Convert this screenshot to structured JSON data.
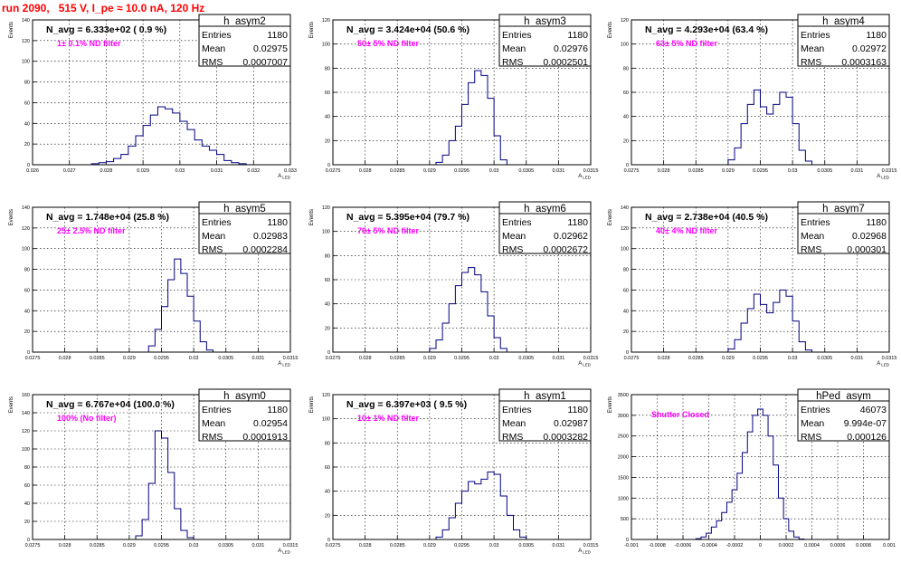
{
  "run_title": "run 2090,   515 V, I_pe ≈ 10.0 nA, 120 Hz",
  "chart_data": [
    {
      "type": "histogram",
      "name": "h_asym2",
      "n_avg": "N_avg = 6.333e+02 ( 0.9 %)",
      "filter": "1± 0.1% ND filter",
      "stats": {
        "Entries": "1180",
        "Mean": "0.02975",
        "RMS": "0.0007007"
      },
      "xlim": [
        0.026,
        0.033
      ],
      "xticks": [
        0.026,
        0.027,
        0.028,
        0.029,
        0.03,
        0.031,
        0.032,
        0.033
      ],
      "xticklabels": [
        "0.026",
        "0.027",
        "0.028",
        "0.029",
        "0.03",
        "0.031",
        "0.032",
        "0.033"
      ],
      "ylim": [
        0,
        140
      ],
      "yticks": [
        0,
        20,
        40,
        60,
        80,
        100,
        120,
        140
      ],
      "ylabel": "Events",
      "xlabel": "A_LED",
      "filter_color": "#ff00ff",
      "x": [
        0.0277,
        0.0279,
        0.0281,
        0.0283,
        0.0285,
        0.0287,
        0.0289,
        0.0291,
        0.0293,
        0.0295,
        0.0297,
        0.0299,
        0.0301,
        0.0303,
        0.0305,
        0.0307,
        0.0309,
        0.0311,
        0.0313,
        0.0315,
        0.0317
      ],
      "values": [
        1,
        2,
        3,
        6,
        10,
        18,
        28,
        38,
        48,
        56,
        54,
        50,
        42,
        34,
        24,
        18,
        14,
        10,
        4,
        2,
        1
      ]
    },
    {
      "type": "histogram",
      "name": "h_asym3",
      "n_avg": "N_avg = 3.424e+04 (50.6 %)",
      "filter": "50± 5% ND filter",
      "stats": {
        "Entries": "1180",
        "Mean": "0.02976",
        "RMS": "0.0002501"
      },
      "xlim": [
        0.0275,
        0.0315
      ],
      "xticks": [
        0.0275,
        0.028,
        0.0285,
        0.029,
        0.0295,
        0.03,
        0.0305,
        0.031,
        0.0315
      ],
      "xticklabels": [
        "0.0275",
        "0.028",
        "0.0285",
        "0.029",
        "0.0295",
        "0.03",
        "0.0305",
        "0.031",
        "0.0315"
      ],
      "ylim": [
        0,
        120
      ],
      "yticks": [
        0,
        20,
        40,
        60,
        80,
        100,
        120
      ],
      "ylabel": "Events",
      "xlabel": "A_LED",
      "filter_color": "#ff00ff",
      "x": [
        0.02915,
        0.02925,
        0.02935,
        0.02945,
        0.02955,
        0.02965,
        0.02975,
        0.02985,
        0.02995,
        0.03005,
        0.03015
      ],
      "values": [
        2,
        8,
        20,
        32,
        50,
        68,
        78,
        74,
        55,
        24,
        4
      ]
    },
    {
      "type": "histogram",
      "name": "h_asym4",
      "n_avg": "N_avg = 4.293e+04 (63.4 %)",
      "filter": "63± 5% ND filter",
      "stats": {
        "Entries": "1180",
        "Mean": "0.02972",
        "RMS": "0.0003163"
      },
      "xlim": [
        0.0275,
        0.0315
      ],
      "xticks": [
        0.0275,
        0.028,
        0.0285,
        0.029,
        0.0295,
        0.03,
        0.0305,
        0.031,
        0.0315
      ],
      "xticklabels": [
        "0.0275",
        "0.028",
        "0.0285",
        "0.029",
        "0.0295",
        "0.03",
        "0.0305",
        "0.031",
        "0.0315"
      ],
      "ylim": [
        0,
        120
      ],
      "yticks": [
        0,
        20,
        40,
        60,
        80,
        100,
        120
      ],
      "ylabel": "Events",
      "xlabel": "A_LED",
      "filter_color": "#ff00ff",
      "x": [
        0.02905,
        0.02915,
        0.02925,
        0.02935,
        0.02945,
        0.02955,
        0.02965,
        0.02975,
        0.02985,
        0.02995,
        0.03005,
        0.03015,
        0.03025
      ],
      "values": [
        4,
        14,
        34,
        50,
        62,
        48,
        42,
        50,
        60,
        56,
        34,
        12,
        3
      ]
    },
    {
      "type": "histogram",
      "name": "h_asym5",
      "n_avg": "N_avg = 1.748e+04 (25.8 %)",
      "filter": "25± 2.5% ND filter",
      "stats": {
        "Entries": "1180",
        "Mean": "0.02983",
        "RMS": "0.0002284"
      },
      "xlim": [
        0.0275,
        0.0315
      ],
      "xticks": [
        0.0275,
        0.028,
        0.0285,
        0.029,
        0.0295,
        0.03,
        0.0305,
        0.031,
        0.0315
      ],
      "xticklabels": [
        "0.0275",
        "0.028",
        "0.0285",
        "0.029",
        "0.0295",
        "0.03",
        "0.0305",
        "0.031",
        "0.0315"
      ],
      "ylim": [
        0,
        140
      ],
      "yticks": [
        0,
        20,
        40,
        60,
        80,
        100,
        120,
        140
      ],
      "ylabel": "Events",
      "xlabel": "A_LED",
      "filter_color": "#ff00ff",
      "x": [
        0.02935,
        0.02945,
        0.02955,
        0.02965,
        0.02975,
        0.02985,
        0.02995,
        0.03005,
        0.03015,
        0.03025
      ],
      "values": [
        6,
        22,
        44,
        70,
        90,
        76,
        54,
        30,
        10,
        2
      ]
    },
    {
      "type": "histogram",
      "name": "h_asym6",
      "n_avg": "N_avg = 5.395e+04 (79.7 %)",
      "filter": "79± 5% ND filter",
      "stats": {
        "Entries": "1180",
        "Mean": "0.02962",
        "RMS": "0.0002672"
      },
      "xlim": [
        0.0275,
        0.0315
      ],
      "xticks": [
        0.0275,
        0.028,
        0.0285,
        0.029,
        0.0295,
        0.03,
        0.0305,
        0.031,
        0.0315
      ],
      "xticklabels": [
        "0.0275",
        "0.028",
        "0.0285",
        "0.029",
        "0.0295",
        "0.03",
        "0.0305",
        "0.031",
        "0.0315"
      ],
      "ylim": [
        0,
        120
      ],
      "yticks": [
        0,
        20,
        40,
        60,
        80,
        100,
        120
      ],
      "ylabel": "Events",
      "xlabel": "A_LED",
      "filter_color": "#ff00ff",
      "x": [
        0.02905,
        0.02915,
        0.02925,
        0.02935,
        0.02945,
        0.02955,
        0.02965,
        0.02975,
        0.02985,
        0.02995,
        0.03005,
        0.03015
      ],
      "values": [
        3,
        10,
        24,
        40,
        55,
        66,
        70,
        64,
        50,
        30,
        12,
        3
      ]
    },
    {
      "type": "histogram",
      "name": "h_asym7",
      "n_avg": "N_avg = 2.738e+04 (40.5 %)",
      "filter": "40± 4% ND filter",
      "stats": {
        "Entries": "1180",
        "Mean": "0.02968",
        "RMS": "0.000301"
      },
      "xlim": [
        0.0275,
        0.0315
      ],
      "xticks": [
        0.0275,
        0.028,
        0.0285,
        0.029,
        0.0295,
        0.03,
        0.0305,
        0.031,
        0.0315
      ],
      "xticklabels": [
        "0.0275",
        "0.028",
        "0.0285",
        "0.029",
        "0.0295",
        "0.03",
        "0.0305",
        "0.031",
        "0.0315"
      ],
      "ylim": [
        0,
        140
      ],
      "yticks": [
        0,
        20,
        40,
        60,
        80,
        100,
        120,
        140
      ],
      "ylabel": "Events",
      "xlabel": "A_LED",
      "filter_color": "#ff00ff",
      "x": [
        0.02905,
        0.02915,
        0.02925,
        0.02935,
        0.02945,
        0.02955,
        0.02965,
        0.02975,
        0.02985,
        0.02995,
        0.03005,
        0.03015,
        0.03025
      ],
      "values": [
        3,
        12,
        28,
        42,
        56,
        46,
        38,
        48,
        60,
        54,
        30,
        10,
        2
      ]
    },
    {
      "type": "histogram",
      "name": "h_asym0",
      "n_avg": "N_avg = 6.767e+04 (100.0 %)",
      "filter": "100% (No filter)",
      "stats": {
        "Entries": "1180",
        "Mean": "0.02954",
        "RMS": "0.0001913"
      },
      "xlim": [
        0.0275,
        0.0315
      ],
      "xticks": [
        0.0275,
        0.028,
        0.0285,
        0.029,
        0.0295,
        0.03,
        0.0305,
        0.031,
        0.0315
      ],
      "xticklabels": [
        "0.0275",
        "0.028",
        "0.0285",
        "0.029",
        "0.0295",
        "0.03",
        "0.0305",
        "0.031",
        "0.0315"
      ],
      "ylim": [
        0,
        160
      ],
      "yticks": [
        0,
        20,
        40,
        60,
        80,
        100,
        120,
        140,
        160
      ],
      "ylabel": "Events",
      "xlabel": "A_LED",
      "filter_color": "#ff00ff",
      "x": [
        0.02915,
        0.02925,
        0.02935,
        0.02945,
        0.02955,
        0.02965,
        0.02975,
        0.02985,
        0.02995
      ],
      "values": [
        4,
        22,
        62,
        120,
        112,
        74,
        34,
        10,
        2
      ]
    },
    {
      "type": "histogram",
      "name": "h_asym1",
      "n_avg": "N_avg = 6.397e+03 ( 9.5 %)",
      "filter": "10± 1% ND filter",
      "stats": {
        "Entries": "1180",
        "Mean": "0.02987",
        "RMS": "0.0003282"
      },
      "xlim": [
        0.0275,
        0.0315
      ],
      "xticks": [
        0.0275,
        0.028,
        0.0285,
        0.029,
        0.0295,
        0.03,
        0.0305,
        0.031,
        0.0315
      ],
      "xticklabels": [
        "0.0275",
        "0.028",
        "0.0285",
        "0.029",
        "0.0295",
        "0.03",
        "0.0305",
        "0.031",
        "0.0315"
      ],
      "ylim": [
        0,
        120
      ],
      "yticks": [
        0,
        20,
        40,
        60,
        80,
        100,
        120
      ],
      "ylabel": "Events",
      "xlabel": "A_LED",
      "filter_color": "#ff00ff",
      "x": [
        0.02915,
        0.02925,
        0.02935,
        0.02945,
        0.02955,
        0.02965,
        0.02975,
        0.02985,
        0.02995,
        0.03005,
        0.03015,
        0.03025,
        0.03035,
        0.03045
      ],
      "values": [
        2,
        8,
        18,
        30,
        40,
        48,
        46,
        50,
        56,
        54,
        36,
        20,
        8,
        2
      ]
    },
    {
      "type": "histogram",
      "name": "hPed_asym",
      "n_avg": "",
      "filter": "Shutter Closed",
      "stats": {
        "Entries": "46073",
        "Mean": "9.994e-07",
        "RMS": "0.000126"
      },
      "xlim": [
        -0.001,
        0.001
      ],
      "xticks": [
        -0.001,
        -0.0008,
        -0.0006,
        -0.0004,
        -0.0002,
        0,
        0.0002,
        0.0004,
        0.0006,
        0.0008,
        0.001
      ],
      "xticklabels": [
        "-0.001",
        "-0.0008",
        "-0.0006",
        "-0.0004",
        "-0.0002",
        "0",
        "0.0002",
        "0.0004",
        "0.0006",
        "0.0008",
        "0.001"
      ],
      "ylim": [
        0,
        3500
      ],
      "yticks": [
        0,
        500,
        1000,
        1500,
        2000,
        2500,
        3000,
        3500
      ],
      "ylabel": "Events",
      "xlabel": "",
      "filter_color": "#ff00ff",
      "x": [
        -0.00048,
        -0.00044,
        -0.0004,
        -0.00036,
        -0.00032,
        -0.00028,
        -0.00024,
        -0.0002,
        -0.00016,
        -0.00012,
        -8e-05,
        -4e-05,
        0,
        4e-05,
        8e-05,
        0.00012,
        0.00016,
        0.0002,
        0.00024,
        0.00028,
        0.00032
      ],
      "values": [
        20,
        60,
        150,
        300,
        450,
        650,
        900,
        1200,
        1600,
        2100,
        2600,
        3000,
        3150,
        3000,
        2500,
        1800,
        1000,
        500,
        200,
        60,
        10
      ]
    }
  ]
}
